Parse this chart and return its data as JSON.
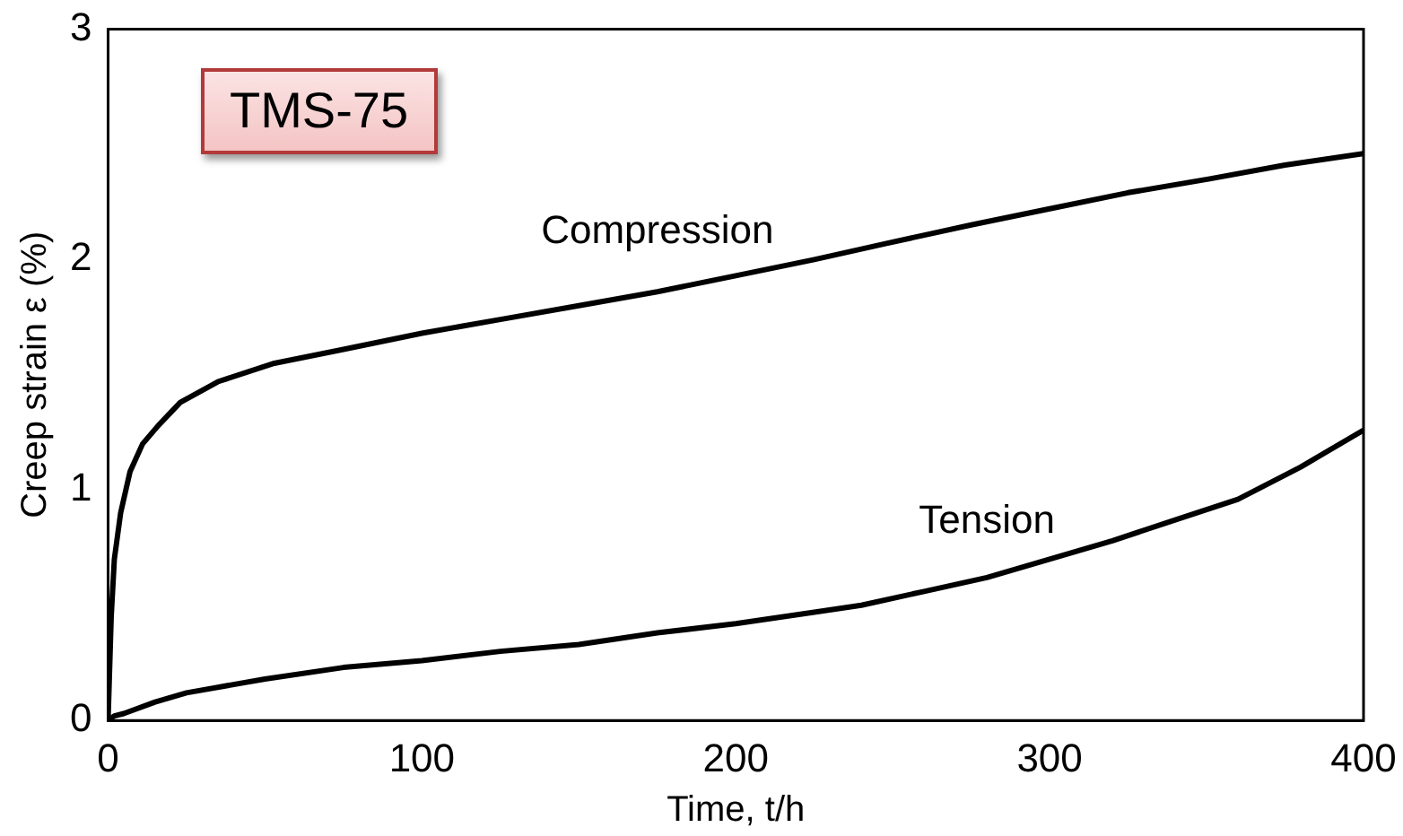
{
  "chart_data": {
    "type": "line",
    "xlabel": "Time, t/h",
    "ylabel": "Creep strain ε (%)",
    "annotations": [
      "TMS-75"
    ],
    "xlim": [
      0,
      400
    ],
    "xticks": [
      0,
      100,
      200,
      300,
      400
    ],
    "ylim": [
      0,
      3
    ],
    "yticks": [
      0,
      1,
      2,
      3
    ],
    "grid": false,
    "legend": false,
    "marker": "none",
    "line_style": "solid",
    "series": [
      {
        "name": "Compression",
        "color": "#000000",
        "x": [
          0,
          1,
          2,
          4,
          7,
          11,
          16,
          23,
          35,
          53,
          75,
          100,
          125,
          150,
          175,
          200,
          225,
          248,
          275,
          300,
          325,
          351,
          375,
          400
        ],
        "values": [
          0,
          0.45,
          0.7,
          0.9,
          1.08,
          1.2,
          1.28,
          1.38,
          1.47,
          1.55,
          1.61,
          1.68,
          1.74,
          1.8,
          1.86,
          1.93,
          2.0,
          2.07,
          2.15,
          2.22,
          2.29,
          2.35,
          2.41,
          2.46
        ]
      },
      {
        "name": "Tension",
        "color": "#000000",
        "x": [
          0,
          2,
          5,
          15,
          25,
          50,
          75,
          100,
          125,
          150,
          175,
          200,
          225,
          240,
          260,
          280,
          300,
          320,
          340,
          360,
          380,
          400
        ],
        "values": [
          0,
          0.02,
          0.03,
          0.08,
          0.12,
          0.18,
          0.23,
          0.26,
          0.3,
          0.33,
          0.38,
          0.42,
          0.47,
          0.5,
          0.56,
          0.62,
          0.7,
          0.78,
          0.87,
          0.96,
          1.1,
          1.26
        ]
      }
    ]
  }
}
